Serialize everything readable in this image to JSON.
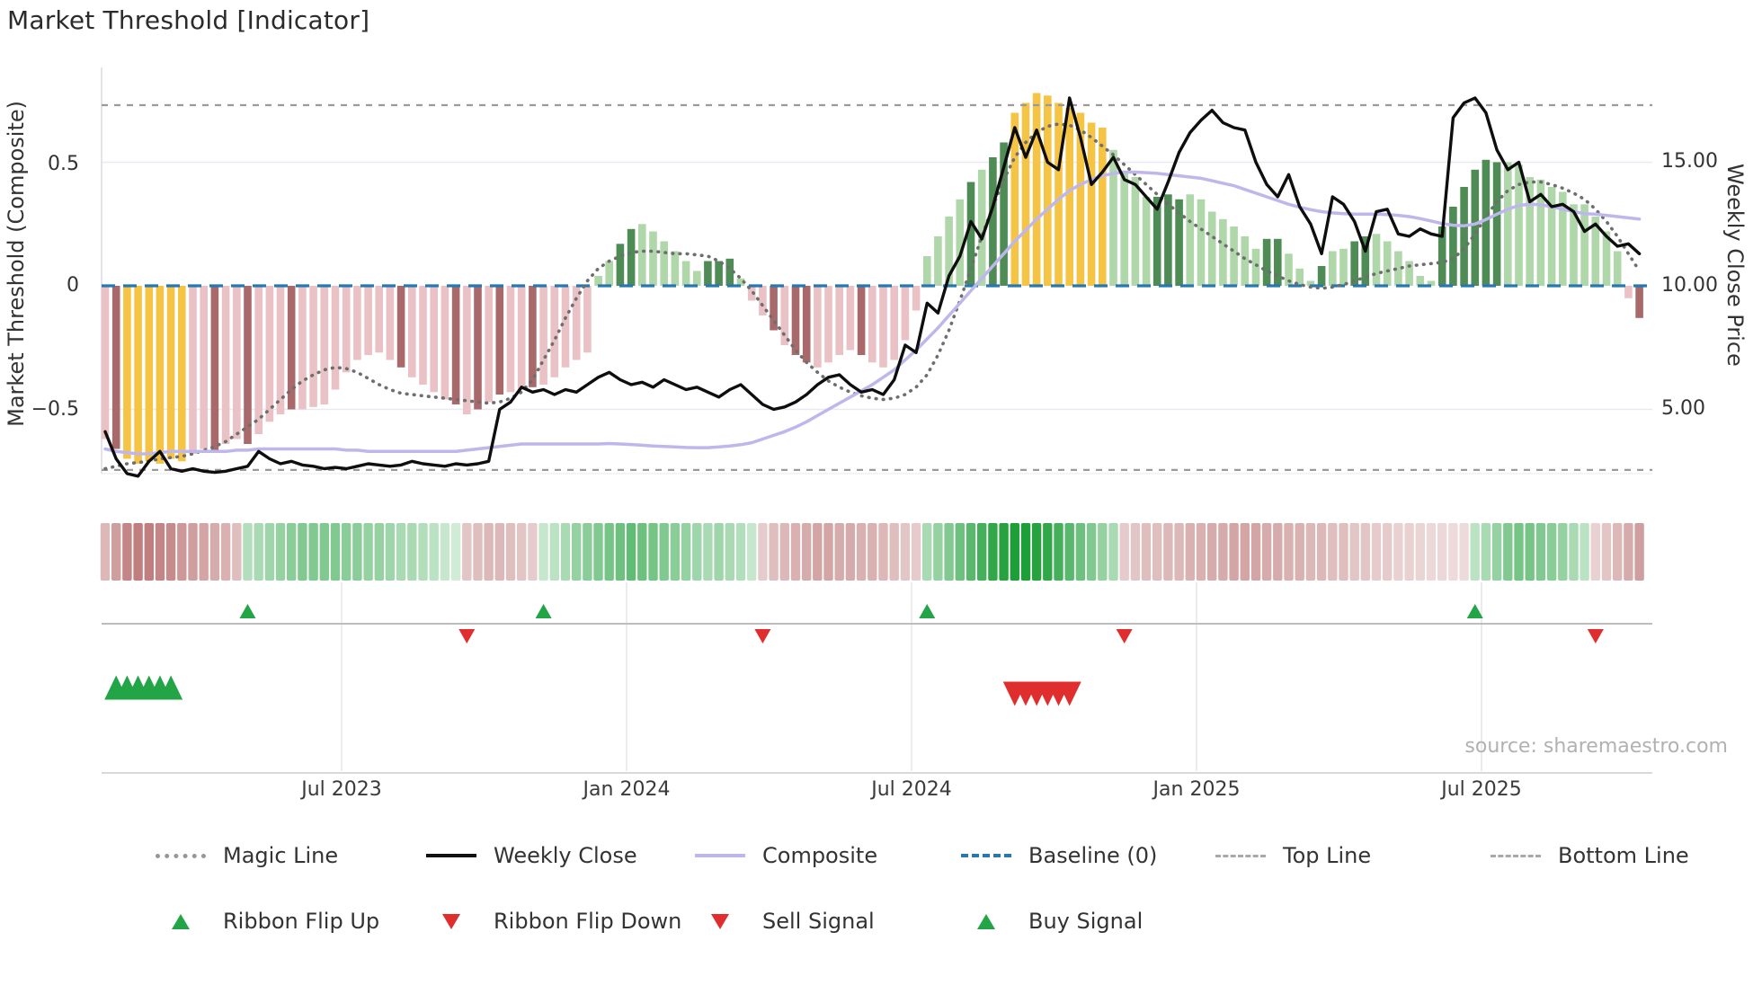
{
  "title": "Market Threshold [Indicator]",
  "source_note": "source: sharemaestro.com",
  "axes": {
    "left_label": "Market Threshold (Composite)",
    "right_label": "Weekly Close Price",
    "left_ticks": [
      "0.5",
      "0",
      "−0.5"
    ],
    "right_ticks": [
      "15.00",
      "10.00",
      "5.00"
    ],
    "x_ticks": [
      "Jul 2023",
      "Jan 2024",
      "Jul 2024",
      "Jan 2025",
      "Jul 2025"
    ]
  },
  "legend": {
    "row1": [
      {
        "label": "Magic Line"
      },
      {
        "label": "Weekly Close"
      },
      {
        "label": "Composite"
      },
      {
        "label": "Baseline (0)"
      },
      {
        "label": "Top Line"
      },
      {
        "label": "Bottom Line"
      }
    ],
    "row2": [
      {
        "label": "Ribbon Flip Up"
      },
      {
        "label": "Ribbon Flip Down"
      },
      {
        "label": "Sell Signal"
      },
      {
        "label": "Buy Signal"
      }
    ]
  },
  "colors": {
    "bar_pink_light": "#EAC2C5",
    "bar_red_dark": "#A9696B",
    "bar_yellow": "#F6C445",
    "bar_green_light": "#AFD7A9",
    "bar_green_dark": "#4E8B55",
    "weekly_close_line": "#0e0e0e",
    "composite_line": "#bdb7ec",
    "magic_line": "#6e6e6e",
    "baseline": "#2878b0",
    "top_bottom_line": "#9a9a9a",
    "signal_green": "#22a447",
    "signal_red": "#e02d2d",
    "ribbon_green_base": "#1e9e38",
    "ribbon_red_base": "#a84e4e"
  },
  "chart_data": {
    "type": "bar+line combo with ribbon heatmap and signal markers",
    "x_unit": "weeks (weekly data, ~Feb 2023 to ~Oct 2025)",
    "x_tick_labels": [
      "Jul 2023",
      "Jan 2024",
      "Jul 2024",
      "Jan 2025",
      "Jul 2025"
    ],
    "x_tick_weeks": [
      21.6,
      47.6,
      73.6,
      99.6,
      125.6
    ],
    "ylim_left": [
      -0.76,
      0.88
    ],
    "ylim_right": [
      2.4,
      18.8
    ],
    "left_axis_ticks": [
      0.5,
      0,
      -0.5
    ],
    "right_axis_ticks": [
      15,
      10,
      5
    ],
    "baseline": 0,
    "top_line": 0.731,
    "bottom_line": -0.745,
    "threshold_bars": {
      "values": [
        -0.62,
        -0.66,
        -0.7,
        -0.72,
        -0.71,
        -0.72,
        -0.7,
        -0.71,
        -0.68,
        -0.66,
        -0.67,
        -0.64,
        -0.62,
        -0.64,
        -0.6,
        -0.55,
        -0.52,
        -0.5,
        -0.5,
        -0.49,
        -0.48,
        -0.42,
        -0.35,
        -0.3,
        -0.28,
        -0.27,
        -0.3,
        -0.33,
        -0.37,
        -0.4,
        -0.43,
        -0.46,
        -0.48,
        -0.52,
        -0.5,
        -0.47,
        -0.44,
        -0.43,
        -0.42,
        -0.41,
        -0.4,
        -0.37,
        -0.33,
        -0.3,
        -0.27,
        0.04,
        0.1,
        0.17,
        0.23,
        0.25,
        0.22,
        0.18,
        0.14,
        0.1,
        0.06,
        0.1,
        0.1,
        0.11,
        0.03,
        -0.06,
        -0.12,
        -0.18,
        -0.24,
        -0.28,
        -0.31,
        -0.33,
        -0.31,
        -0.28,
        -0.26,
        -0.28,
        -0.31,
        -0.33,
        -0.3,
        -0.22,
        -0.1,
        0.12,
        0.2,
        0.28,
        0.35,
        0.42,
        0.47,
        0.52,
        0.58,
        0.7,
        0.74,
        0.78,
        0.77,
        0.74,
        0.72,
        0.7,
        0.66,
        0.64,
        0.55,
        0.46,
        0.44,
        0.36,
        0.36,
        0.37,
        0.35,
        0.37,
        0.35,
        0.3,
        0.27,
        0.24,
        0.2,
        0.15,
        0.19,
        0.19,
        0.13,
        0.07,
        0.02,
        0.08,
        0.14,
        0.15,
        0.18,
        0.2,
        0.21,
        0.18,
        0.14,
        0.1,
        0.04,
        0.02,
        0.24,
        0.32,
        0.4,
        0.47,
        0.51,
        0.5,
        0.5,
        0.49,
        0.44,
        0.43,
        0.4,
        0.38,
        0.33,
        0.33,
        0.28,
        0.22,
        0.14,
        -0.05,
        -0.13
      ],
      "shades": "pdyyyyyyppdppdpppdpppppppppdppppdpdpdppdpppppllggllllllggglppdpddppppdpppppllllglggyyyyyyyyyllllggglllllllgglllgllggllllllgggggglllllllllllpd",
      "shade_legend": {
        "p": "pink light",
        "d": "red dark",
        "y": "yellow",
        "l": "green light",
        "g": "green dark"
      }
    },
    "weekly_close": [
      4.1,
      3.0,
      2.4,
      2.3,
      2.9,
      3.3,
      2.6,
      2.5,
      2.6,
      2.5,
      2.45,
      2.5,
      2.6,
      2.7,
      3.3,
      3.0,
      2.8,
      2.9,
      2.75,
      2.7,
      2.6,
      2.65,
      2.6,
      2.7,
      2.8,
      2.75,
      2.7,
      2.75,
      2.9,
      2.8,
      2.75,
      2.7,
      2.8,
      2.75,
      2.8,
      2.9,
      5.0,
      5.3,
      5.9,
      5.7,
      5.8,
      5.6,
      5.8,
      5.7,
      6.0,
      6.3,
      6.5,
      6.2,
      6.0,
      6.1,
      5.9,
      6.2,
      6.0,
      5.8,
      5.9,
      5.7,
      5.5,
      5.8,
      6.0,
      5.6,
      5.2,
      5.0,
      5.1,
      5.3,
      5.6,
      6.0,
      6.3,
      6.4,
      6.0,
      5.7,
      5.8,
      5.6,
      6.2,
      7.6,
      7.3,
      9.3,
      8.9,
      10.4,
      11.2,
      12.6,
      11.9,
      13.2,
      14.8,
      16.4,
      15.2,
      16.3,
      15.0,
      14.7,
      17.6,
      16.0,
      14.1,
      14.6,
      15.2,
      14.3,
      14.1,
      13.6,
      13.1,
      14.2,
      15.4,
      16.2,
      16.7,
      17.1,
      16.6,
      16.4,
      16.3,
      15.0,
      14.1,
      13.6,
      14.5,
      13.2,
      12.5,
      11.3,
      13.6,
      13.3,
      12.6,
      11.4,
      13.0,
      13.1,
      12.1,
      12.0,
      12.3,
      12.1,
      12.0,
      16.8,
      17.4,
      17.6,
      17.0,
      15.5,
      14.7,
      15.0,
      13.4,
      13.7,
      13.2,
      13.3,
      13.0,
      12.2,
      12.5,
      12.0,
      11.6,
      11.7,
      11.3
    ],
    "composite": [
      -0.66,
      -0.67,
      -0.675,
      -0.68,
      -0.68,
      -0.675,
      -0.67,
      -0.67,
      -0.67,
      -0.67,
      -0.67,
      -0.67,
      -0.665,
      -0.665,
      -0.66,
      -0.66,
      -0.66,
      -0.66,
      -0.66,
      -0.66,
      -0.66,
      -0.66,
      -0.665,
      -0.665,
      -0.67,
      -0.67,
      -0.67,
      -0.67,
      -0.67,
      -0.67,
      -0.67,
      -0.67,
      -0.67,
      -0.665,
      -0.66,
      -0.655,
      -0.65,
      -0.645,
      -0.64,
      -0.64,
      -0.64,
      -0.64,
      -0.64,
      -0.64,
      -0.64,
      -0.64,
      -0.638,
      -0.64,
      -0.642,
      -0.645,
      -0.648,
      -0.65,
      -0.652,
      -0.654,
      -0.655,
      -0.655,
      -0.652,
      -0.648,
      -0.643,
      -0.635,
      -0.62,
      -0.605,
      -0.59,
      -0.572,
      -0.55,
      -0.525,
      -0.5,
      -0.475,
      -0.45,
      -0.425,
      -0.4,
      -0.37,
      -0.34,
      -0.3,
      -0.26,
      -0.215,
      -0.17,
      -0.12,
      -0.07,
      -0.02,
      0.03,
      0.08,
      0.13,
      0.18,
      0.225,
      0.27,
      0.31,
      0.35,
      0.385,
      0.41,
      0.43,
      0.445,
      0.455,
      0.46,
      0.46,
      0.458,
      0.455,
      0.45,
      0.445,
      0.44,
      0.435,
      0.425,
      0.415,
      0.405,
      0.39,
      0.375,
      0.36,
      0.345,
      0.33,
      0.318,
      0.308,
      0.3,
      0.295,
      0.292,
      0.29,
      0.29,
      0.29,
      0.288,
      0.285,
      0.28,
      0.272,
      0.262,
      0.252,
      0.245,
      0.243,
      0.25,
      0.268,
      0.29,
      0.31,
      0.325,
      0.33,
      0.328,
      0.32,
      0.31,
      0.3,
      0.292,
      0.29,
      0.285,
      0.28,
      0.275,
      0.27
    ],
    "magic_line": [
      -0.74,
      -0.73,
      -0.72,
      -0.715,
      -0.71,
      -0.7,
      -0.695,
      -0.69,
      -0.68,
      -0.665,
      -0.65,
      -0.63,
      -0.6,
      -0.57,
      -0.54,
      -0.5,
      -0.46,
      -0.42,
      -0.385,
      -0.36,
      -0.34,
      -0.33,
      -0.335,
      -0.35,
      -0.375,
      -0.4,
      -0.42,
      -0.435,
      -0.44,
      -0.445,
      -0.45,
      -0.455,
      -0.46,
      -0.465,
      -0.47,
      -0.475,
      -0.47,
      -0.455,
      -0.43,
      -0.38,
      -0.3,
      -0.22,
      -0.13,
      -0.05,
      0.02,
      0.07,
      0.1,
      0.12,
      0.135,
      0.14,
      0.14,
      0.135,
      0.13,
      0.13,
      0.125,
      0.12,
      0.1,
      0.07,
      0.03,
      -0.02,
      -0.08,
      -0.14,
      -0.2,
      -0.26,
      -0.31,
      -0.35,
      -0.385,
      -0.41,
      -0.43,
      -0.445,
      -0.455,
      -0.46,
      -0.455,
      -0.44,
      -0.41,
      -0.36,
      -0.28,
      -0.18,
      -0.06,
      0.07,
      0.2,
      0.32,
      0.43,
      0.52,
      0.58,
      0.62,
      0.645,
      0.655,
      0.65,
      0.63,
      0.6,
      0.565,
      0.53,
      0.49,
      0.45,
      0.41,
      0.37,
      0.33,
      0.295,
      0.26,
      0.23,
      0.2,
      0.17,
      0.14,
      0.11,
      0.085,
      0.06,
      0.04,
      0.02,
      0.005,
      -0.005,
      -0.01,
      -0.005,
      0.005,
      0.02,
      0.035,
      0.05,
      0.06,
      0.07,
      0.08,
      0.085,
      0.09,
      0.095,
      0.11,
      0.15,
      0.21,
      0.28,
      0.34,
      0.385,
      0.41,
      0.42,
      0.42,
      0.41,
      0.395,
      0.375,
      0.35,
      0.31,
      0.26,
      0.2,
      0.13,
      0.06
    ],
    "ribbon": [
      -0.35,
      -0.55,
      -0.75,
      -0.8,
      -0.8,
      -0.75,
      -0.7,
      -0.6,
      -0.55,
      -0.5,
      -0.45,
      -0.4,
      -0.3,
      0.25,
      0.3,
      0.35,
      0.4,
      0.45,
      0.5,
      0.5,
      0.5,
      0.5,
      0.45,
      0.45,
      0.4,
      0.4,
      0.35,
      0.3,
      0.3,
      0.25,
      0.2,
      0.15,
      0.1,
      -0.25,
      -0.3,
      -0.35,
      -0.35,
      -0.3,
      -0.25,
      -0.2,
      0.15,
      0.2,
      0.3,
      0.4,
      0.45,
      0.5,
      0.55,
      0.6,
      0.65,
      0.6,
      0.55,
      0.5,
      0.45,
      0.4,
      0.35,
      0.3,
      0.35,
      0.3,
      0.25,
      0.15,
      -0.2,
      -0.3,
      -0.35,
      -0.4,
      -0.45,
      -0.5,
      -0.5,
      -0.45,
      -0.45,
      -0.4,
      -0.4,
      -0.35,
      -0.3,
      -0.25,
      -0.2,
      0.3,
      0.4,
      0.5,
      0.6,
      0.7,
      0.8,
      0.9,
      0.95,
      1.0,
      1.0,
      0.95,
      0.9,
      0.8,
      0.7,
      0.6,
      0.5,
      0.4,
      0.3,
      -0.2,
      -0.25,
      -0.3,
      -0.3,
      -0.35,
      -0.35,
      -0.4,
      -0.4,
      -0.45,
      -0.45,
      -0.5,
      -0.5,
      -0.5,
      -0.45,
      -0.45,
      -0.4,
      -0.4,
      -0.35,
      -0.35,
      -0.3,
      -0.3,
      -0.25,
      -0.25,
      -0.2,
      -0.2,
      -0.15,
      -0.15,
      -0.12,
      -0.1,
      -0.1,
      -0.08,
      -0.08,
      0.2,
      0.3,
      0.4,
      0.5,
      0.55,
      0.55,
      0.5,
      0.45,
      0.4,
      0.3,
      0.2,
      -0.15,
      -0.25,
      -0.35,
      -0.45,
      -0.55
    ],
    "ribbon_flip_up_weeks": [
      13,
      40,
      75,
      125
    ],
    "ribbon_flip_down_weeks": [
      33,
      60,
      93,
      136
    ],
    "buy_signal_weeks": [
      1,
      2,
      3,
      4,
      5,
      6
    ],
    "sell_signal_weeks": [
      83,
      84,
      85,
      86,
      87,
      88
    ]
  }
}
